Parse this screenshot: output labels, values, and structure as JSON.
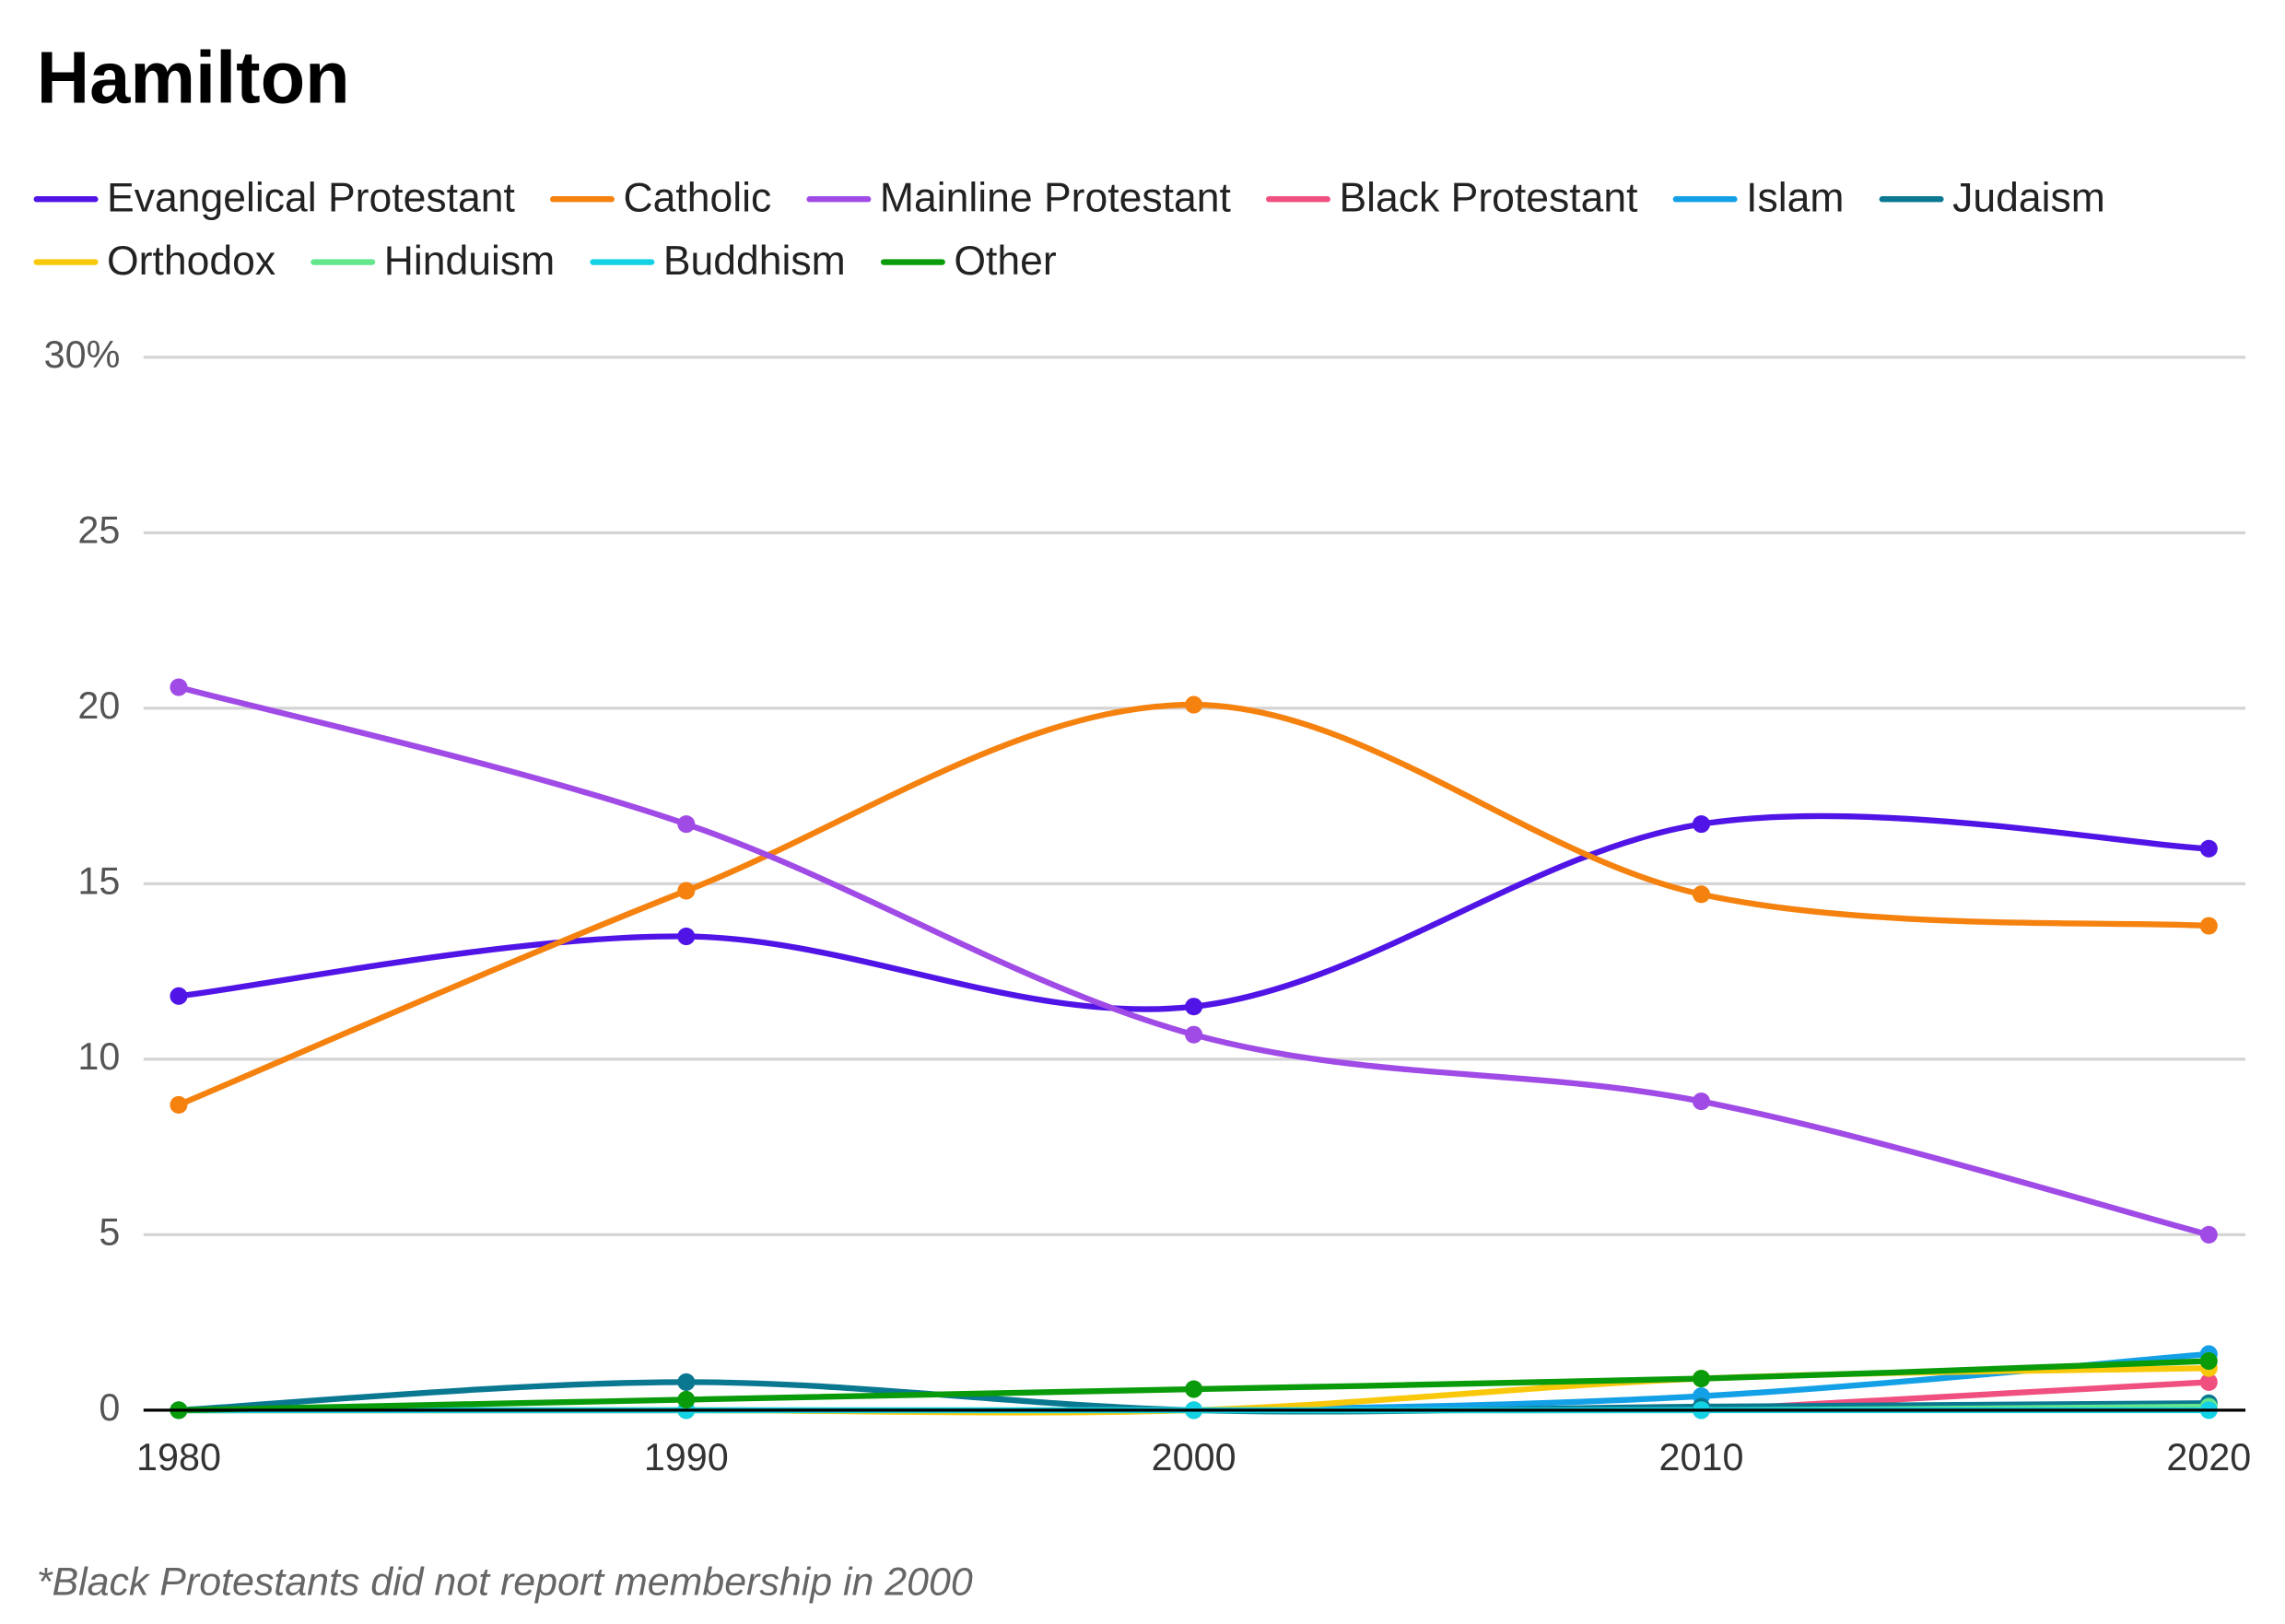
{
  "chart_data": {
    "type": "line",
    "title": "Hamilton",
    "note": "*Black Protestants did not report membership in 2000",
    "x": [
      1980,
      1990,
      2000,
      2010,
      2020
    ],
    "xlim": [
      1980,
      2020
    ],
    "xticks": [
      1980,
      1990,
      2000,
      2010,
      2020
    ],
    "ylim": [
      0,
      30
    ],
    "yticks": [
      0,
      5,
      10,
      15,
      20,
      25,
      {
        "value": 30,
        "label": "30%"
      }
    ],
    "grid": true,
    "series": [
      {
        "name": "Evangelical Protestant",
        "color": "#5014e6",
        "values": [
          11.8,
          13.5,
          11.5,
          16.7,
          16.0
        ]
      },
      {
        "name": "Catholic",
        "color": "#f5820f",
        "values": [
          8.7,
          14.8,
          20.1,
          14.7,
          13.8
        ]
      },
      {
        "name": "Mainline Protestant",
        "color": "#a04be6",
        "values": [
          20.6,
          16.7,
          10.7,
          8.8,
          5.0
        ]
      },
      {
        "name": "Black Protestant",
        "color": "#f0507f",
        "values": [
          0,
          0,
          null,
          0,
          0.8
        ]
      },
      {
        "name": "Islam",
        "color": "#14a0e6",
        "values": [
          0,
          0,
          0,
          0.4,
          1.6
        ]
      },
      {
        "name": "Judaism",
        "color": "#0a7891",
        "values": [
          0,
          0.8,
          0,
          0.1,
          0.2
        ]
      },
      {
        "name": "Orthodox",
        "color": "#fac80a",
        "values": [
          0,
          0,
          0,
          0.9,
          1.2
        ]
      },
      {
        "name": "Hinduism",
        "color": "#64e68c",
        "values": [
          0,
          0,
          0,
          0,
          0.1
        ]
      },
      {
        "name": "Buddhism",
        "color": "#14d2e6",
        "values": [
          0,
          0,
          0,
          0,
          0
        ]
      },
      {
        "name": "Other",
        "color": "#0a9b0a",
        "values": [
          0,
          0.3,
          0.6,
          0.9,
          1.4
        ]
      }
    ]
  }
}
